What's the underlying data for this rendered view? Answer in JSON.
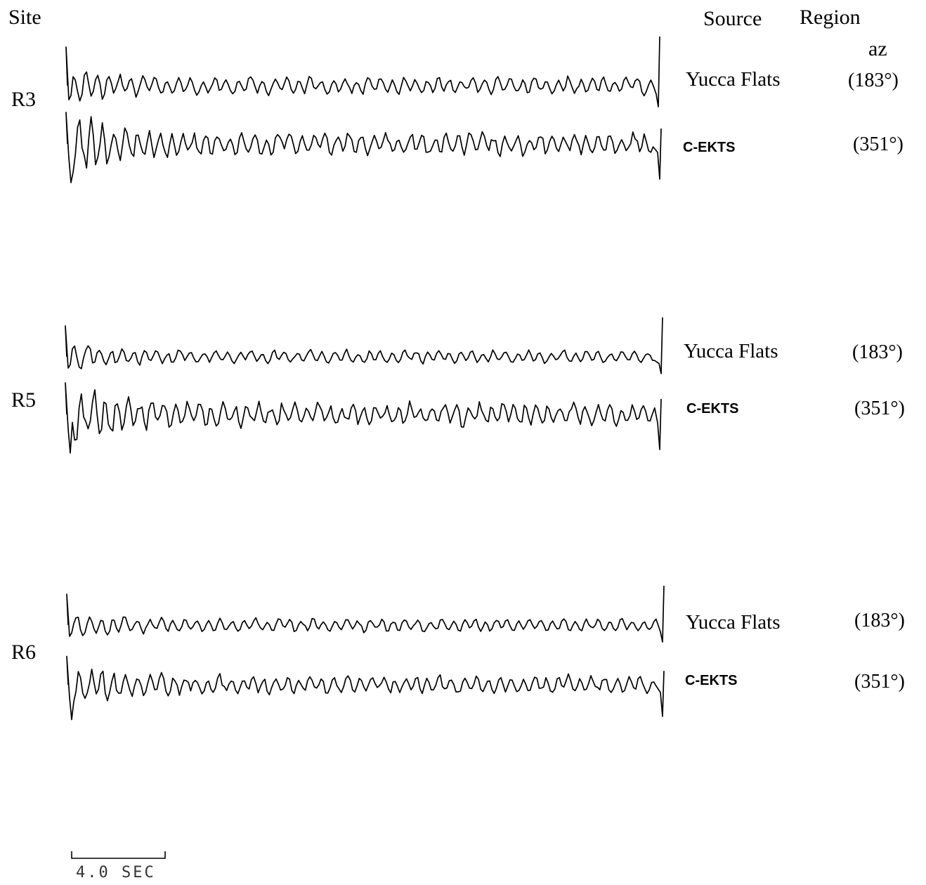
{
  "header": {
    "site_label": "Site",
    "source_label": "Source",
    "region_label": "Region",
    "az_label": "az"
  },
  "sites": [
    {
      "name": "R3",
      "traces": [
        {
          "source": "Yucca Flats",
          "az": "(183°)"
        },
        {
          "source": "C-EKTS",
          "az": "(351°)"
        }
      ]
    },
    {
      "name": "R5",
      "traces": [
        {
          "source": "Yucca Flats",
          "az": "(183°)"
        },
        {
          "source": "C-EKTS",
          "az": "(351°)"
        }
      ]
    },
    {
      "name": "R6",
      "traces": [
        {
          "source": "Yucca Flats",
          "az": "(183°)"
        },
        {
          "source": "C-EKTS",
          "az": "(351°)"
        }
      ]
    }
  ],
  "scale": {
    "label": "4.0 SEC",
    "seconds": 4.0
  },
  "colors": {
    "ink": "#000000",
    "background": "#ffffff"
  }
}
